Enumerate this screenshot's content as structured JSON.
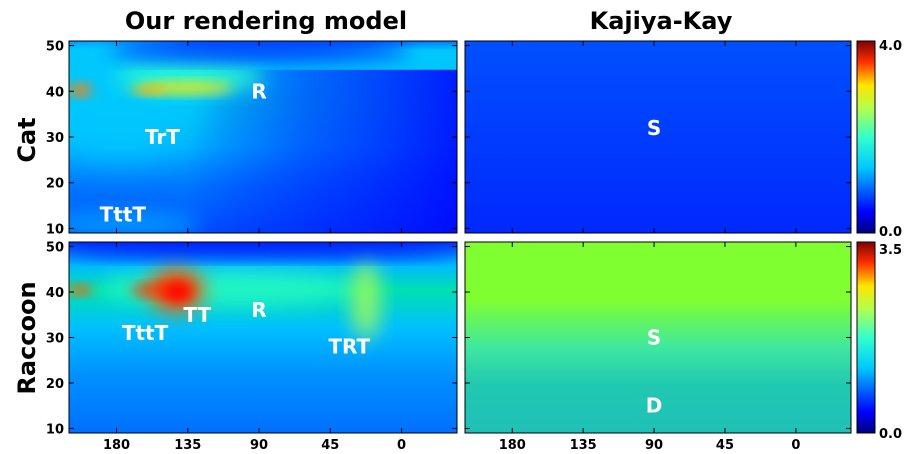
{
  "chart_data": [
    {
      "type": "heatmap",
      "title": "Our rendering model",
      "row_label": "Cat",
      "x_ticks": [
        180,
        135,
        90,
        45,
        0
      ],
      "y_ticks": [
        10,
        20,
        30,
        40,
        50
      ],
      "xlim": [
        210,
        -35
      ],
      "ylim": [
        9,
        51
      ],
      "colorscale": "jet",
      "zlim": [
        0.0,
        4.0
      ],
      "annotations": [
        {
          "text": "R",
          "x": 90,
          "y": 40
        },
        {
          "text": "TrT",
          "x": 151,
          "y": 30
        },
        {
          "text": "TttT",
          "x": 176,
          "y": 13
        }
      ]
    },
    {
      "type": "heatmap",
      "title": "Kajiya-Kay",
      "row_label": "Cat",
      "x_ticks": [
        180,
        135,
        90,
        45,
        0
      ],
      "y_ticks": [
        10,
        20,
        30,
        40,
        50
      ],
      "xlim": [
        210,
        -35
      ],
      "ylim": [
        9,
        51
      ],
      "colorscale": "jet",
      "zlim": [
        0.0,
        4.0
      ],
      "annotations": [
        {
          "text": "S",
          "x": 90,
          "y": 32
        }
      ]
    },
    {
      "type": "heatmap",
      "title": "Our rendering model",
      "row_label": "Raccoon",
      "x_ticks": [
        180,
        135,
        90,
        45,
        0
      ],
      "y_ticks": [
        10,
        20,
        30,
        40,
        50
      ],
      "xlim": [
        210,
        -35
      ],
      "ylim": [
        9,
        51
      ],
      "colorscale": "jet",
      "zlim": [
        0.0,
        3.5
      ],
      "annotations": [
        {
          "text": "R",
          "x": 90,
          "y": 36
        },
        {
          "text": "TT",
          "x": 129,
          "y": 35
        },
        {
          "text": "TttT",
          "x": 162,
          "y": 31
        },
        {
          "text": "TRT",
          "x": 33,
          "y": 28
        }
      ]
    },
    {
      "type": "heatmap",
      "title": "Kajiya-Kay",
      "row_label": "Raccoon",
      "x_ticks": [
        180,
        135,
        90,
        45,
        0
      ],
      "y_ticks": [
        10,
        20,
        30,
        40,
        50
      ],
      "xlim": [
        210,
        -35
      ],
      "ylim": [
        9,
        51
      ],
      "colorscale": "jet",
      "zlim": [
        0.0,
        3.5
      ],
      "annotations": [
        {
          "text": "S",
          "x": 90,
          "y": 30
        },
        {
          "text": "D",
          "x": 90,
          "y": 15
        }
      ]
    }
  ],
  "colorbars": [
    {
      "max_label": "4.0",
      "min_label": "0.0"
    },
    {
      "max_label": "3.5",
      "min_label": "0.0"
    }
  ],
  "col_titles": [
    "Our rendering model",
    "Kajiya-Kay"
  ],
  "row_titles": [
    "Cat",
    "Raccoon"
  ]
}
